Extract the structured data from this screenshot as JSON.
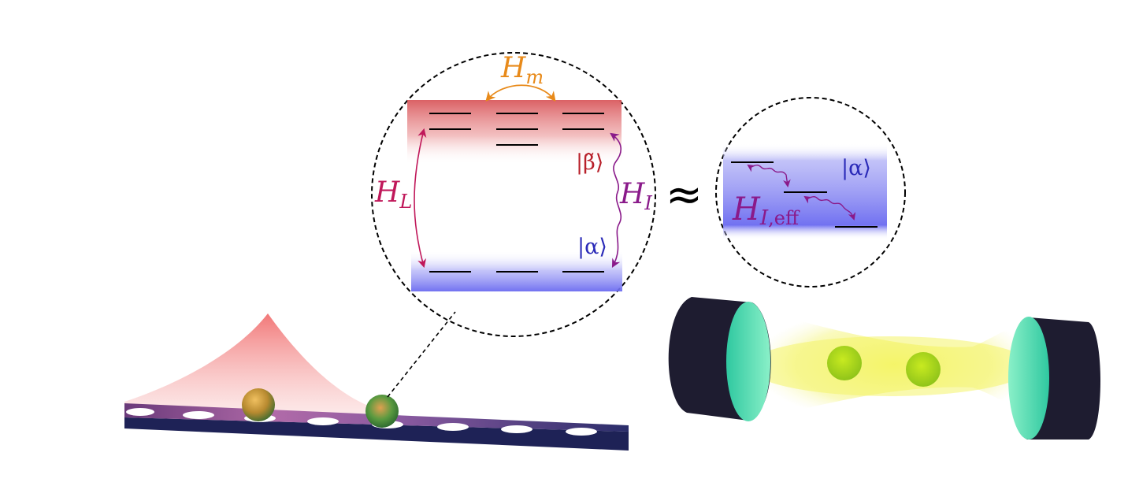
{
  "left_inset": {
    "coupling_m": {
      "symbol": "H",
      "subscript": "m"
    },
    "coupling_L": {
      "symbol": "H",
      "subscript": "L"
    },
    "coupling_I": {
      "symbol": "H",
      "subscript": "I"
    },
    "state_beta": "|β̃⟩",
    "state_alpha": "|α⟩"
  },
  "approx_symbol": "≈",
  "right_inset": {
    "state_alpha": "|α⟩",
    "effective": {
      "symbol": "H",
      "subscript_italic": "I",
      "subscript_roman": ",eff"
    }
  },
  "colors": {
    "excited_band": "#d9595d",
    "ground_band": "#6a6af0",
    "H_m": "#e88a1a",
    "H_L": "#c0185a",
    "H_I": "#8a1a8a",
    "state_beta": "#b8202a",
    "state_alpha": "#2a2ab8",
    "waveguide": "#23265e",
    "cavity_beam": "#f2f25a",
    "mirror_face": "#4de0a8",
    "mirror_body": "#1e1c30",
    "atom": "#a8d81a"
  },
  "icons": {
    "waveguide": "photonic-crystal-waveguide",
    "cavity": "fabry-perot-cavity",
    "emitter": "quantum-emitter-sphere"
  }
}
